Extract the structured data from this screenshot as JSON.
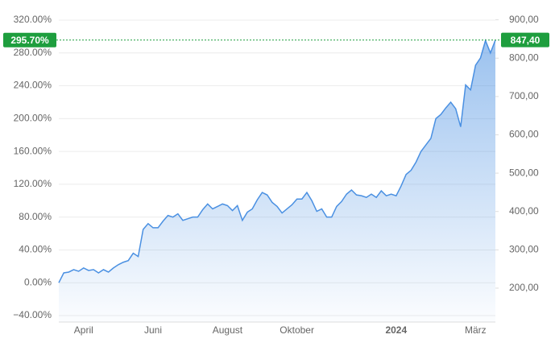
{
  "chart_data": {
    "type": "area",
    "categories": [
      null,
      null,
      null,
      null,
      null,
      "April",
      null,
      null,
      null,
      null,
      null,
      null,
      null,
      null,
      null,
      null,
      null,
      null,
      null,
      "Juni",
      null,
      null,
      null,
      null,
      null,
      null,
      null,
      null,
      null,
      null,
      null,
      null,
      null,
      null,
      "August",
      null,
      null,
      null,
      null,
      null,
      null,
      null,
      null,
      null,
      null,
      null,
      null,
      null,
      "Oktober",
      null,
      null,
      null,
      null,
      null,
      null,
      null,
      null,
      null,
      null,
      null,
      null,
      null,
      null,
      null,
      null,
      null,
      null,
      null,
      "2024",
      null,
      null,
      null,
      null,
      null,
      null,
      null,
      null,
      null,
      null,
      null,
      null,
      null,
      null,
      null,
      "März",
      null,
      null,
      null,
      null
    ],
    "series": [
      {
        "color": "#4a90e2",
        "values": [
          0,
          12,
          13,
          16,
          14,
          18,
          15,
          16,
          12,
          16,
          13,
          18,
          22,
          25,
          27,
          36,
          32,
          65,
          72,
          67,
          67,
          75,
          82,
          80,
          84,
          76,
          78,
          80,
          80,
          89,
          96,
          90,
          93,
          96,
          94,
          88,
          94,
          76,
          86,
          90,
          101,
          110,
          107,
          98,
          93,
          85,
          90,
          95,
          102,
          102,
          110,
          100,
          87,
          90,
          80,
          80,
          93,
          99,
          108,
          113,
          107,
          106,
          104,
          108,
          104,
          112,
          106,
          108,
          106,
          118,
          132,
          137,
          147,
          160,
          168,
          176,
          200,
          205,
          213,
          220,
          212,
          190,
          241,
          235,
          265,
          274,
          295,
          280,
          295.7
        ]
      }
    ],
    "ylim": [
      -40,
      320
    ],
    "yticks": [
      {
        "value": -40,
        "label": "−40.00%"
      },
      {
        "value": 0,
        "label": "0.00%"
      },
      {
        "value": 40,
        "label": "40.00%"
      },
      {
        "value": 80,
        "label": "80.00%"
      },
      {
        "value": 120,
        "label": "120.00%"
      },
      {
        "value": 160,
        "label": "160.00%"
      },
      {
        "value": 200,
        "label": "200.00%"
      },
      {
        "value": 240,
        "label": "240.00%"
      },
      {
        "value": 280,
        "label": "280.00%"
      },
      {
        "value": 320,
        "label": "320.00%"
      }
    ],
    "y2lim": [
      128.5,
      899.2
    ],
    "y2ticks": [
      {
        "value": 200,
        "label": "200,00"
      },
      {
        "value": 300,
        "label": "300,00"
      },
      {
        "value": 400,
        "label": "400,00"
      },
      {
        "value": 500,
        "label": "500,00"
      },
      {
        "value": 600,
        "label": "600,00"
      },
      {
        "value": 700,
        "label": "700,00"
      },
      {
        "value": 800,
        "label": "800,00"
      },
      {
        "value": 900,
        "label": "900,00"
      }
    ],
    "last_value": {
      "value": 295.7,
      "label": "295.70%"
    },
    "last_price": {
      "value": 847.4,
      "label": "847,40"
    },
    "marker_color": "#1e9e3e",
    "grid": true
  }
}
